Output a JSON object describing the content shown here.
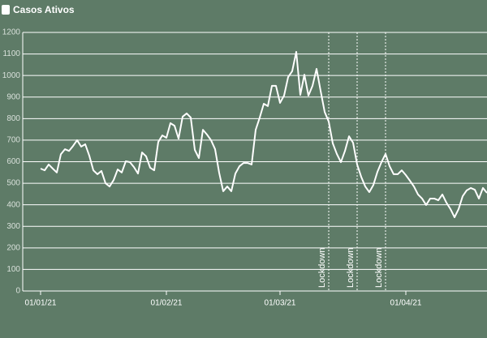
{
  "chart_data": {
    "type": "line",
    "series": [
      {
        "name": "Casos Ativos",
        "color": "#ffffff",
        "x": [
          0,
          1,
          2,
          3,
          4,
          5,
          6,
          7,
          8,
          9,
          10,
          11,
          12,
          13,
          14,
          15,
          16,
          17,
          18,
          19,
          20,
          21,
          22,
          23,
          24,
          25,
          26,
          27,
          28,
          29,
          30,
          31,
          32,
          33,
          34,
          35,
          36,
          37,
          38,
          39,
          40,
          41,
          42,
          43,
          44,
          45,
          46,
          47,
          48,
          49,
          50,
          51,
          52,
          53,
          54,
          55,
          56,
          57,
          58,
          59,
          60,
          61,
          62,
          63,
          64,
          65,
          66,
          67,
          68,
          69,
          70,
          71,
          72,
          73,
          74,
          75,
          76,
          77,
          78,
          79,
          80,
          81,
          82,
          83,
          84,
          85,
          86,
          87,
          88,
          89,
          90,
          91,
          92,
          93,
          94,
          95,
          96,
          97,
          98,
          99,
          100,
          101,
          102,
          103,
          104,
          105,
          106,
          107,
          108,
          109,
          110
        ],
        "values": [
          568,
          560,
          587,
          568,
          550,
          635,
          658,
          650,
          673,
          700,
          670,
          681,
          628,
          560,
          542,
          557,
          500,
          485,
          515,
          564,
          550,
          602,
          598,
          575,
          545,
          643,
          625,
          572,
          560,
          692,
          722,
          711,
          779,
          767,
          707,
          809,
          824,
          805,
          655,
          617,
          748,
          726,
          700,
          658,
          549,
          463,
          485,
          463,
          545,
          579,
          594,
          594,
          587,
          748,
          805,
          869,
          858,
          952,
          952,
          873,
          907,
          993,
          1020,
          1110,
          910,
          1004,
          907,
          952,
          1031,
          929,
          831,
          786,
          685,
          636,
          598,
          650,
          718,
          688,
          587,
          530,
          485,
          459,
          492,
          553,
          598,
          636,
          579,
          542,
          542,
          560,
          538,
          512,
          485,
          448,
          429,
          399,
          429,
          429,
          421,
          448,
          410,
          380,
          342,
          380,
          440,
          467,
          478,
          470,
          429,
          478,
          455
        ]
      }
    ],
    "xlim": [
      -4.4,
      110
    ],
    "xticks": [
      {
        "value": 0,
        "label": "01/01/21"
      },
      {
        "value": 31,
        "label": "01/02/21"
      },
      {
        "value": 59,
        "label": "01/03/21"
      },
      {
        "value": 90,
        "label": "01/04/21"
      }
    ],
    "ylim": [
      0,
      1200
    ],
    "yticks": [
      0,
      100,
      200,
      300,
      400,
      500,
      600,
      700,
      800,
      900,
      1000,
      1100,
      1200
    ],
    "grid": true,
    "annotations": [
      {
        "x": 71,
        "label": "Lockdown"
      },
      {
        "x": 78,
        "label": "Lockdown"
      },
      {
        "x": 85,
        "label": "Lockdown"
      }
    ]
  }
}
